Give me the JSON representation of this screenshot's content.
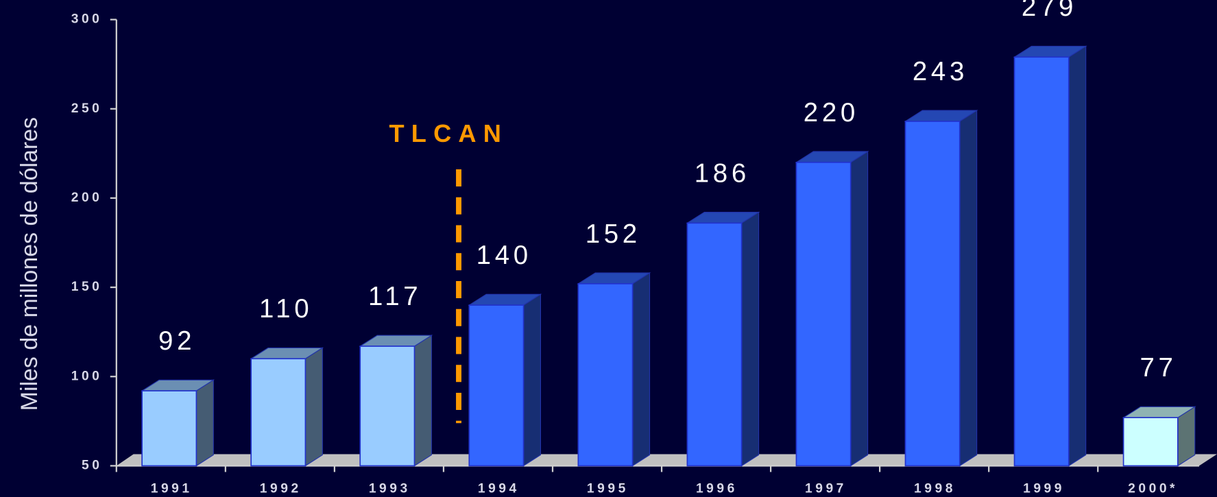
{
  "chart_data": {
    "type": "bar",
    "y_label": "Miles de millones de dólares",
    "annotation": "TLCAN",
    "categories": [
      "1991",
      "1992",
      "1993",
      "1994",
      "1995",
      "1996",
      "1997",
      "1998",
      "1999",
      "2000*"
    ],
    "values": [
      92,
      110,
      117,
      140,
      152,
      186,
      220,
      243,
      279,
      77
    ],
    "colors": [
      "#99ccff",
      "#99ccff",
      "#99ccff",
      "#3366ff",
      "#3366ff",
      "#3366ff",
      "#3366ff",
      "#3366ff",
      "#3366ff",
      "#ccffff"
    ],
    "ylim": [
      50,
      300
    ],
    "yticks": [
      50,
      100,
      150,
      200,
      250,
      300
    ]
  }
}
